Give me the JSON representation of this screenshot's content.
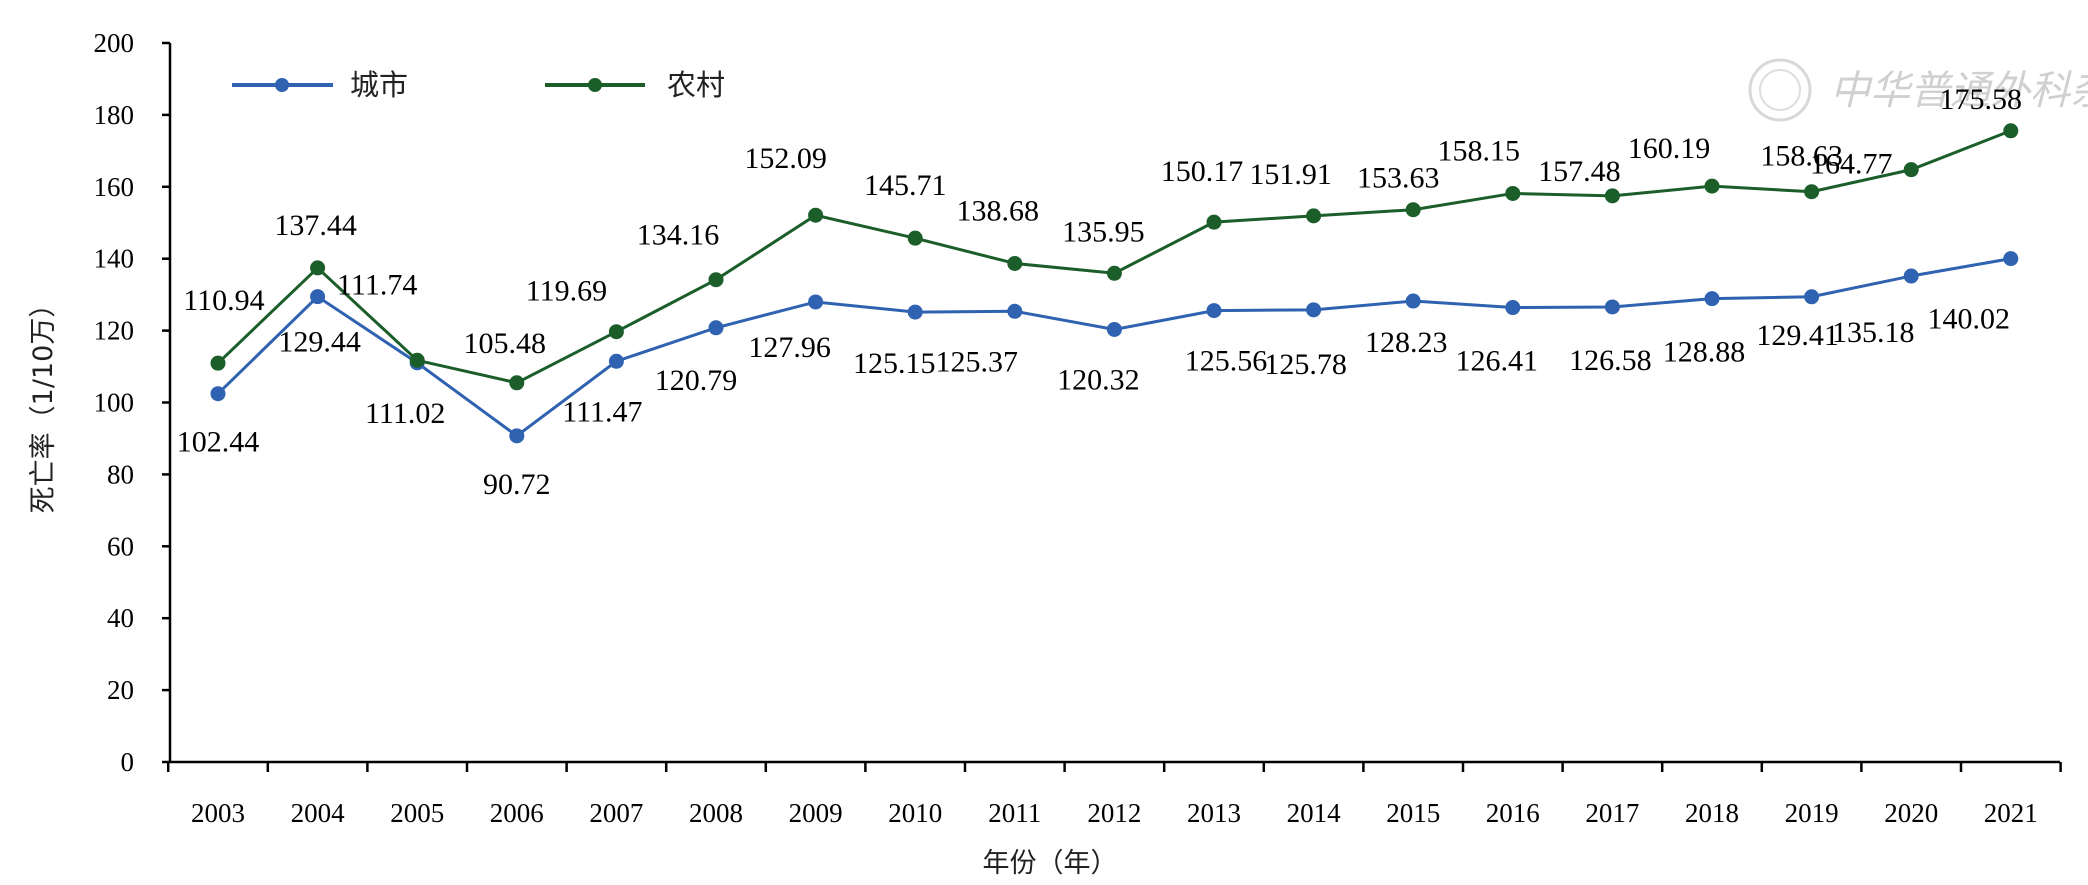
{
  "chart_data": {
    "type": "line",
    "xlabel": "年份（年）",
    "ylabel": "死亡率（1/10万）",
    "ylim": [
      0,
      200
    ],
    "yticks": [
      0,
      20,
      40,
      60,
      80,
      100,
      120,
      140,
      160,
      180,
      200
    ],
    "categories": [
      "2003",
      "2004",
      "2005",
      "2006",
      "2007",
      "2008",
      "2009",
      "2010",
      "2011",
      "2012",
      "2013",
      "2014",
      "2015",
      "2016",
      "2017",
      "2018",
      "2019",
      "2020",
      "2021"
    ],
    "series": [
      {
        "name": "城市",
        "color": "#2f62b0",
        "values": [
          102.44,
          129.44,
          111.02,
          90.72,
          111.47,
          120.79,
          127.96,
          125.15,
          125.37,
          120.32,
          125.56,
          125.78,
          128.23,
          126.41,
          126.58,
          128.88,
          129.41,
          135.18,
          140.02
        ],
        "labels": [
          "102.44",
          "129.44",
          "111.02",
          "90.72",
          "111.47",
          "120.79",
          "127.96",
          "125.15",
          "125.37",
          "120.32",
          "125.56",
          "125.78",
          "128.23",
          "126.41",
          "126.58",
          "128.88",
          "129.41",
          "135.18",
          "140.02"
        ]
      },
      {
        "name": "农村",
        "color": "#1b5e2a",
        "values": [
          110.94,
          137.44,
          111.74,
          105.48,
          119.69,
          134.16,
          152.09,
          145.71,
          138.68,
          135.95,
          150.17,
          151.91,
          153.63,
          158.15,
          157.48,
          160.19,
          158.63,
          164.77,
          175.58
        ],
        "labels": [
          "110.94",
          "137.44",
          "111.74",
          "105.48",
          "119.69",
          "134.16",
          "152.09",
          "145.71",
          "138.68",
          "135.95",
          "150.17",
          "151.91",
          "153.63",
          "158.15",
          "157.48",
          "160.19",
          "158.63",
          "164.77",
          "175.58"
        ]
      }
    ],
    "legend_position": "top-left",
    "grid": false,
    "watermark": "中华普通外科杂志"
  }
}
